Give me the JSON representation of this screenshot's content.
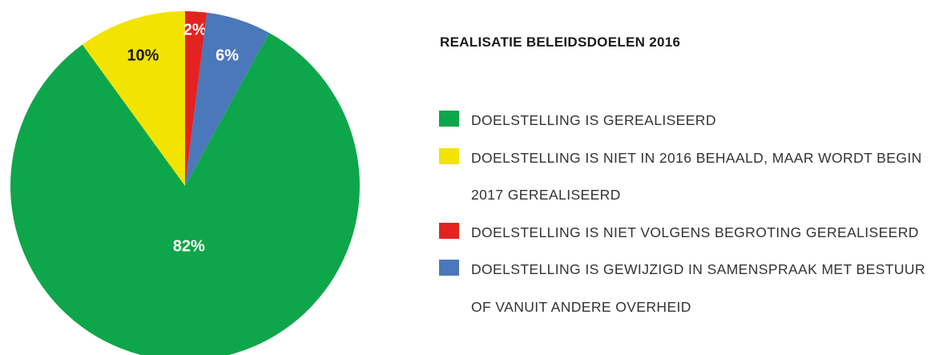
{
  "chart_data": {
    "type": "pie",
    "title": "REALISATIE BELEIDSDOELEN 2016",
    "categories": [
      "DOELSTELLING IS GEREALISEERD",
      "DOELSTELLING IS NIET IN 2016 BEHAALD, MAAR WORDT BEGIN 2017 GEREALISEERD",
      "DOELSTELLING IS NIET VOLGENS BEGROTING GEREALISEERD",
      "DOELSTELLING IS GEWIJZIGD IN SAMENSPRAAK MET BESTUUR OF VANUIT ANDERE OVERHEID"
    ],
    "values": [
      82,
      10,
      2,
      6
    ],
    "value_labels": [
      "82%",
      "10%",
      "2%",
      "6%"
    ],
    "colors": [
      "#0ea64a",
      "#f2e400",
      "#e42320",
      "#4a78ba"
    ],
    "label_colors": [
      "#ffffff",
      "#1a1a1a",
      "#ffffff",
      "#ffffff"
    ]
  }
}
